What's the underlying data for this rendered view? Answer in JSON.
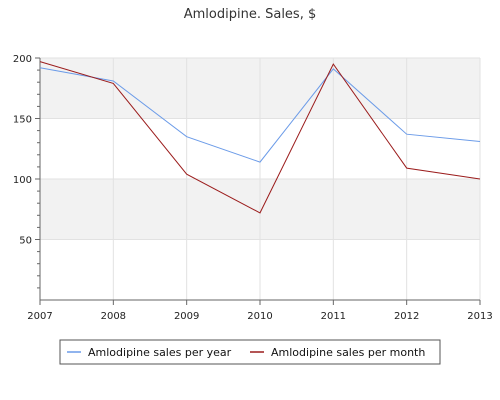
{
  "chart_data": {
    "type": "line",
    "title": "Amlodipine. Sales, $",
    "xlabel": "",
    "ylabel": "",
    "x": [
      "2007",
      "2008",
      "2009",
      "2010",
      "2011",
      "2012",
      "2013"
    ],
    "y_ticks": [
      "50",
      "100",
      "150",
      "200"
    ],
    "ylim": [
      0,
      200
    ],
    "grid": true,
    "legend_position": "bottom",
    "series": [
      {
        "name": "Amlodipine sales per year",
        "color": "#6b9be8",
        "values": [
          192,
          181,
          135,
          114,
          191,
          137,
          131
        ]
      },
      {
        "name": "Amlodipine sales per month",
        "color": "#9b1c1c",
        "values": [
          197,
          179,
          104,
          72,
          195,
          109,
          100
        ]
      }
    ]
  }
}
